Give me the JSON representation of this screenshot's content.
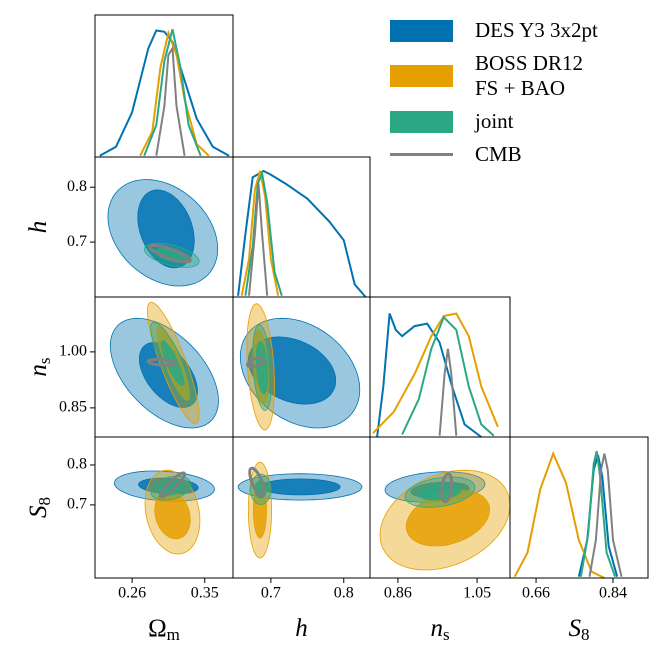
{
  "chart_data": {
    "type": "corner",
    "params": [
      {
        "symbol": "Ω",
        "subscript": "m",
        "xlim": [
          0.214,
          0.385
        ],
        "xticks": [
          0.26,
          0.35
        ]
      },
      {
        "symbol": "h",
        "xlim": [
          0.648,
          0.836
        ],
        "xticks": [
          0.7,
          0.8
        ],
        "ylim": [
          0.6,
          0.855
        ],
        "yticks": [
          0.7,
          0.8
        ]
      },
      {
        "symbol": "n",
        "subscript": "s",
        "xlim": [
          0.793,
          1.129
        ],
        "xticks": [
          0.86,
          1.05
        ],
        "ylim": [
          0.772,
          1.147
        ],
        "yticks": [
          0.85,
          {
            "value": 1,
            "label": "1.00"
          }
        ]
      },
      {
        "symbol": "S",
        "subscript": "8",
        "xlim": [
          0.599,
          0.922
        ],
        "xticks": [
          0.66,
          0.84
        ],
        "ylim": [
          0.517,
          0.87
        ],
        "yticks": [
          0.7,
          0.8
        ]
      }
    ],
    "series": [
      {
        "name": "DES Y3 3x2pt",
        "color": "#0072b2",
        "filled": true
      },
      {
        "name": "BOSS DR12\nFS + BAO",
        "color": "#e69f00",
        "filled": true
      },
      {
        "name": "joint",
        "color": "#2aa883",
        "filled": true
      },
      {
        "name": "CMB",
        "color": "#808080",
        "filled": false
      }
    ],
    "marginals": [
      [
        {
          "x": [
            0.22,
            0.24,
            0.26,
            0.28,
            0.29,
            0.3,
            0.31,
            0.32,
            0.34,
            0.36,
            0.38
          ],
          "y": [
            0.01,
            0.08,
            0.35,
            0.85,
            0.99,
            0.98,
            0.9,
            0.7,
            0.3,
            0.08,
            0.01
          ]
        },
        {
          "x": [
            0.27,
            0.285,
            0.295,
            0.305,
            0.315,
            0.325,
            0.34,
            0.355
          ],
          "y": [
            0.01,
            0.2,
            0.7,
            0.97,
            0.8,
            0.45,
            0.1,
            0.01
          ]
        },
        {
          "x": [
            0.275,
            0.29,
            0.3,
            0.31,
            0.32,
            0.33,
            0.345
          ],
          "y": [
            0.01,
            0.25,
            0.75,
            1.0,
            0.7,
            0.25,
            0.01
          ]
        },
        {
          "x": [
            0.29,
            0.3,
            0.305,
            0.31,
            0.315,
            0.325
          ],
          "y": [
            0.01,
            0.4,
            0.8,
            0.85,
            0.4,
            0.01
          ]
        }
      ],
      [
        {
          "x": [
            0.655,
            0.665,
            0.675,
            0.69,
            0.7,
            0.72,
            0.75,
            0.78,
            0.8,
            0.815,
            0.83
          ],
          "y": [
            0.01,
            0.5,
            0.95,
            1.0,
            0.97,
            0.9,
            0.78,
            0.6,
            0.45,
            0.1,
            0.0
          ]
        },
        {
          "x": [
            0.66,
            0.67,
            0.678,
            0.685,
            0.692,
            0.7,
            0.71
          ],
          "y": [
            0.01,
            0.3,
            0.85,
            1.0,
            0.8,
            0.3,
            0.01
          ]
        },
        {
          "x": [
            0.665,
            0.675,
            0.682,
            0.688,
            0.695,
            0.705,
            0.715
          ],
          "y": [
            0.01,
            0.4,
            0.9,
            0.98,
            0.75,
            0.2,
            0.01
          ]
        },
        {
          "x": [
            0.67,
            0.678,
            0.683,
            0.688,
            0.695
          ],
          "y": [
            0.01,
            0.5,
            0.9,
            0.5,
            0.01
          ]
        }
      ],
      [
        {
          "x": [
            0.81,
            0.825,
            0.84,
            0.855,
            0.87,
            0.9,
            0.93,
            0.96,
            0.99,
            1.02,
            1.06
          ],
          "y": [
            0.0,
            0.4,
            0.98,
            0.85,
            0.8,
            0.88,
            0.9,
            0.75,
            0.4,
            0.1,
            0.0
          ]
        },
        {
          "x": [
            0.8,
            0.85,
            0.9,
            0.94,
            0.97,
            1.0,
            1.03,
            1.06,
            1.1
          ],
          "y": [
            0.03,
            0.2,
            0.5,
            0.8,
            0.96,
            0.98,
            0.8,
            0.4,
            0.08
          ]
        },
        {
          "x": [
            0.87,
            0.91,
            0.94,
            0.97,
            1.0,
            1.03,
            1.06,
            1.09
          ],
          "y": [
            0.02,
            0.3,
            0.7,
            0.95,
            0.85,
            0.4,
            0.1,
            0.01
          ]
        },
        {
          "x": [
            0.96,
            0.972,
            0.98,
            0.988,
            1.0
          ],
          "y": [
            0.01,
            0.5,
            0.7,
            0.5,
            0.01
          ]
        }
      ],
      [
        {
          "x": [
            0.76,
            0.78,
            0.795,
            0.805,
            0.815,
            0.83,
            0.85
          ],
          "y": [
            0.01,
            0.3,
            0.85,
            0.97,
            0.8,
            0.25,
            0.01
          ]
        },
        {
          "x": [
            0.61,
            0.64,
            0.67,
            0.7,
            0.73,
            0.76,
            0.79,
            0.82
          ],
          "y": [
            0.01,
            0.2,
            0.7,
            0.98,
            0.75,
            0.3,
            0.05,
            0.0
          ]
        },
        {
          "x": [
            0.765,
            0.782,
            0.795,
            0.802,
            0.81,
            0.825,
            0.845
          ],
          "y": [
            0.01,
            0.35,
            0.9,
            1.0,
            0.8,
            0.2,
            0.01
          ]
        },
        {
          "x": [
            0.785,
            0.8,
            0.812,
            0.82,
            0.828,
            0.84,
            0.86
          ],
          "y": [
            0.01,
            0.3,
            0.85,
            0.98,
            0.85,
            0.3,
            0.01
          ]
        }
      ]
    ],
    "panels": [
      [
        [
          [
            {
              "center": [
                0.298,
                0.717
              ],
              "radius": [
                0.068,
                0.097
              ],
              "corr": -0.3
            },
            {
              "center": [
                0.302,
                0.724
              ],
              "radius": [
                0.035,
                0.071
              ],
              "corr": -0.3
            }
          ],
          [],
          [
            {
              "center": [
                0.309,
                0.676
              ],
              "radius": [
                0.034,
                0.022
              ],
              "corr": -0.5
            },
            {
              "center": [
                0.309,
                0.676
              ],
              "radius": [
                0.02,
                0.013
              ],
              "corr": -0.5
            }
          ],
          [
            {
              "center": [
                0.307,
                0.679
              ],
              "radius": [
                0.025,
                0.015
              ],
              "corr": -0.8
            }
          ]
        ]
      ],
      [
        [
          [
            {
              "center": [
                0.3,
                0.943
              ],
              "radius": [
                0.067,
                0.147
              ],
              "corr": -0.5
            },
            {
              "center": [
                0.305,
                0.938
              ],
              "radius": [
                0.036,
                0.087
              ],
              "corr": -0.5
            }
          ],
          [
            {
              "center": [
                0.311,
                0.97
              ],
              "radius": [
                0.032,
                0.163
              ],
              "corr": -0.85
            },
            {
              "center": [
                0.311,
                0.97
              ],
              "radius": [
                0.02,
                0.1
              ],
              "corr": -0.85
            }
          ],
          [
            {
              "center": [
                0.31,
                0.97
              ],
              "radius": [
                0.027,
                0.11
              ],
              "corr": -0.85
            },
            {
              "center": [
                0.31,
                0.97
              ],
              "radius": [
                0.014,
                0.06
              ],
              "corr": -0.85
            }
          ],
          [
            {
              "center": [
                0.297,
                0.972
              ],
              "radius": [
                0.017,
                0.008
              ],
              "corr": -0.3
            }
          ]
        ],
        [
          [
            {
              "center": [
                0.74,
                0.943
              ],
              "radius": [
                0.082,
                0.147
              ],
              "corr": -0.3
            },
            {
              "center": [
                0.729,
                0.95
              ],
              "radius": [
                0.06,
                0.09
              ],
              "corr": -0.3
            }
          ],
          [
            {
              "center": [
                0.686,
                0.96
              ],
              "radius": [
                0.019,
                0.169
              ],
              "corr": -0.3
            },
            {
              "center": [
                0.686,
                0.96
              ],
              "radius": [
                0.011,
                0.1
              ],
              "corr": -0.3
            }
          ],
          [
            {
              "center": [
                0.688,
                0.958
              ],
              "radius": [
                0.013,
                0.115
              ],
              "corr": -0.3
            },
            {
              "center": [
                0.688,
                0.958
              ],
              "radius": [
                0.008,
                0.07
              ],
              "corr": -0.3
            }
          ],
          [
            {
              "center": [
                0.679,
                0.972
              ],
              "radius": [
                0.011,
                0.012
              ],
              "corr": 0.5
            }
          ]
        ]
      ],
      [
        [
          [
            {
              "center": [
                0.3,
                0.747
              ],
              "radius": [
                0.062,
                0.038
              ],
              "corr": -0.2
            },
            {
              "center": [
                0.305,
                0.747
              ],
              "radius": [
                0.037,
                0.02
              ],
              "corr": -0.2
            }
          ],
          [
            {
              "center": [
                0.31,
                0.682
              ],
              "radius": [
                0.034,
                0.105
              ],
              "corr": -0.2
            },
            {
              "center": [
                0.31,
                0.675
              ],
              "radius": [
                0.022,
                0.06
              ],
              "corr": -0.2
            }
          ],
          [
            {
              "center": [
                0.308,
                0.742
              ],
              "radius": [
                0.025,
                0.03
              ],
              "corr": 0.3
            },
            {
              "center": [
                0.308,
                0.742
              ],
              "radius": [
                0.015,
                0.018
              ],
              "corr": 0.3
            }
          ],
          [
            {
              "center": [
                0.31,
                0.75
              ],
              "radius": [
                0.015,
                0.03
              ],
              "corr": 0.9
            }
          ]
        ],
        [
          [
            {
              "center": [
                0.74,
                0.745
              ],
              "radius": [
                0.085,
                0.033
              ],
              "corr": 0.0
            },
            {
              "center": [
                0.74,
                0.745
              ],
              "radius": [
                0.055,
                0.02
              ],
              "corr": 0.0
            }
          ],
          [
            {
              "center": [
                0.685,
                0.687
              ],
              "radius": [
                0.016,
                0.12
              ],
              "corr": 0.0
            },
            {
              "center": [
                0.685,
                0.687
              ],
              "radius": [
                0.009,
                0.07
              ],
              "corr": 0.0
            }
          ],
          [
            {
              "center": [
                0.686,
                0.739
              ],
              "radius": [
                0.014,
                0.038
              ],
              "corr": 0.0
            },
            {
              "center": [
                0.686,
                0.739
              ],
              "radius": [
                0.008,
                0.022
              ],
              "corr": 0.0
            }
          ],
          [
            {
              "center": [
                0.681,
                0.757
              ],
              "radius": [
                0.01,
                0.035
              ],
              "corr": -0.7
            }
          ]
        ],
        [
          [
            {
              "center": [
                0.949,
                0.745
              ],
              "radius": [
                0.12,
                0.038
              ],
              "corr": 0.2
            },
            {
              "center": [
                0.961,
                0.737
              ],
              "radius": [
                0.07,
                0.02
              ],
              "corr": 0.2
            }
          ],
          [
            {
              "center": [
                0.973,
                0.662
              ],
              "radius": [
                0.156,
                0.125
              ],
              "corr": 0.3
            },
            {
              "center": [
                0.98,
                0.667
              ],
              "radius": [
                0.1,
                0.07
              ],
              "corr": 0.3
            }
          ],
          [
            {
              "center": [
                0.961,
                0.732
              ],
              "radius": [
                0.084,
                0.038
              ],
              "corr": 0.3
            },
            {
              "center": [
                0.961,
                0.732
              ],
              "radius": [
                0.05,
                0.02
              ],
              "corr": 0.3
            }
          ],
          [
            {
              "center": [
                0.977,
                0.743
              ],
              "radius": [
                0.012,
                0.035
              ],
              "corr": 0.3
            }
          ]
        ]
      ]
    ]
  }
}
